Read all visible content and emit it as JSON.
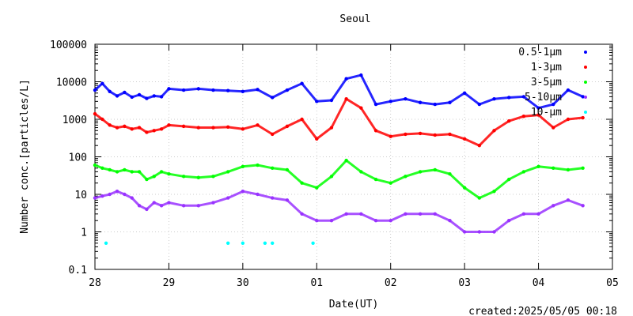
{
  "chart_data": {
    "type": "scatter",
    "title": "Seoul",
    "xlabel": "Date(UT)",
    "ylabel": "Number conc.[particles/L]",
    "yscale": "log",
    "ylim": [
      0.1,
      100000
    ],
    "yticks": [
      "0.1",
      "1",
      "10",
      "100",
      "1000",
      "10000",
      "100000"
    ],
    "xlim": [
      0,
      7
    ],
    "xticks": [
      "28",
      "29",
      "30",
      "01",
      "02",
      "03",
      "04",
      "05"
    ],
    "grid": true,
    "legend": "top-right",
    "footer": "created:2025/05/05 00:18",
    "series": [
      {
        "name": "0.5-1μm",
        "color": "#0000ff",
        "x": [
          0.0,
          0.1,
          0.2,
          0.3,
          0.4,
          0.5,
          0.6,
          0.7,
          0.8,
          0.9,
          1.0,
          1.2,
          1.4,
          1.6,
          1.8,
          2.0,
          2.2,
          2.4,
          2.6,
          2.8,
          3.0,
          3.2,
          3.4,
          3.6,
          3.8,
          4.0,
          4.2,
          4.4,
          4.6,
          4.8,
          5.0,
          5.2,
          5.4,
          5.6,
          5.8,
          6.0,
          6.2,
          6.4,
          6.6
        ],
        "y": [
          6000,
          9000,
          5500,
          4200,
          5200,
          3900,
          4500,
          3600,
          4200,
          4000,
          6500,
          6000,
          6500,
          6000,
          5800,
          5500,
          6200,
          3800,
          6000,
          9000,
          3000,
          3200,
          12000,
          15000,
          2500,
          3000,
          3500,
          2800,
          2500,
          2800,
          5000,
          2500,
          3500,
          3800,
          4000,
          2000,
          2500,
          6000,
          4000
        ]
      },
      {
        "name": "1-3μm",
        "color": "#ff0000",
        "x": [
          0.0,
          0.1,
          0.2,
          0.3,
          0.4,
          0.5,
          0.6,
          0.7,
          0.8,
          0.9,
          1.0,
          1.2,
          1.4,
          1.6,
          1.8,
          2.0,
          2.2,
          2.4,
          2.6,
          2.8,
          3.0,
          3.2,
          3.4,
          3.6,
          3.8,
          4.0,
          4.2,
          4.4,
          4.6,
          4.8,
          5.0,
          5.2,
          5.4,
          5.6,
          5.8,
          6.0,
          6.2,
          6.4,
          6.6
        ],
        "y": [
          1400,
          1000,
          700,
          600,
          650,
          550,
          600,
          450,
          500,
          550,
          700,
          650,
          600,
          600,
          620,
          550,
          700,
          400,
          650,
          1000,
          300,
          600,
          3500,
          2000,
          500,
          350,
          400,
          420,
          380,
          400,
          300,
          200,
          500,
          900,
          1200,
          1300,
          600,
          1000,
          1100
        ]
      },
      {
        "name": "3-5μm",
        "color": "#00ff00",
        "x": [
          0.0,
          0.1,
          0.2,
          0.3,
          0.4,
          0.5,
          0.6,
          0.7,
          0.8,
          0.9,
          1.0,
          1.2,
          1.4,
          1.6,
          1.8,
          2.0,
          2.2,
          2.4,
          2.6,
          2.8,
          3.0,
          3.2,
          3.4,
          3.6,
          3.8,
          4.0,
          4.2,
          4.4,
          4.6,
          4.8,
          5.0,
          5.2,
          5.4,
          5.6,
          5.8,
          6.0,
          6.2,
          6.4,
          6.6
        ],
        "y": [
          60,
          50,
          45,
          40,
          45,
          40,
          40,
          25,
          30,
          40,
          35,
          30,
          28,
          30,
          40,
          55,
          60,
          50,
          45,
          20,
          15,
          30,
          80,
          40,
          25,
          20,
          30,
          40,
          45,
          35,
          15,
          8,
          12,
          25,
          40,
          55,
          50,
          45,
          50
        ]
      },
      {
        "name": "5-10μm",
        "color": "#9933ff",
        "x": [
          0.0,
          0.1,
          0.2,
          0.3,
          0.4,
          0.5,
          0.6,
          0.7,
          0.8,
          0.9,
          1.0,
          1.2,
          1.4,
          1.6,
          1.8,
          2.0,
          2.2,
          2.4,
          2.6,
          2.8,
          3.0,
          3.2,
          3.4,
          3.6,
          3.8,
          4.0,
          4.2,
          4.4,
          4.6,
          4.8,
          5.0,
          5.2,
          5.4,
          5.6,
          5.8,
          6.0,
          6.2,
          6.4,
          6.6
        ],
        "y": [
          8,
          9,
          10,
          12,
          10,
          8,
          5,
          4,
          6,
          5,
          6,
          5,
          5,
          6,
          8,
          12,
          10,
          8,
          7,
          3,
          2,
          2,
          3,
          3,
          2,
          2,
          3,
          3,
          3,
          2,
          1,
          1,
          1,
          2,
          3,
          3,
          5,
          7,
          5
        ]
      },
      {
        "name": "10-μm",
        "color": "#00ffff",
        "x": [
          0.15,
          1.8,
          2.0,
          2.3,
          2.4,
          2.95
        ],
        "y": [
          0.5,
          0.5,
          0.5,
          0.5,
          0.5,
          0.5
        ]
      }
    ]
  }
}
